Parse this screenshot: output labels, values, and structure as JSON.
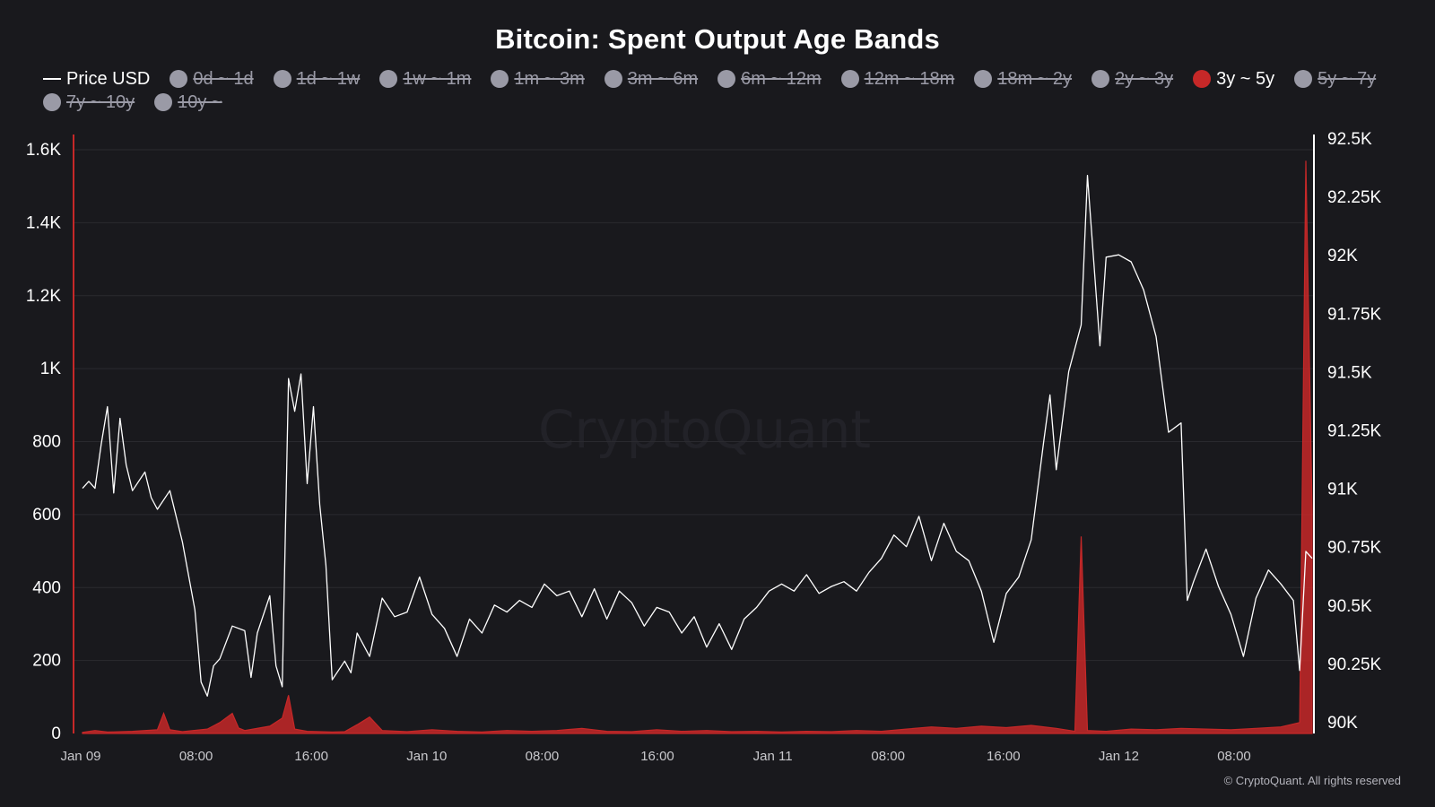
{
  "chart_data": {
    "type": "line",
    "title": "Bitcoin: Spent Output Age Bands",
    "x_ticks": [
      "Jan 09",
      "08:00",
      "16:00",
      "Jan 10",
      "08:00",
      "16:00",
      "Jan 11",
      "08:00",
      "16:00",
      "Jan 12",
      "08:00"
    ],
    "y_left": {
      "ticks": [
        "0",
        "200",
        "400",
        "600",
        "800",
        "1K",
        "1.2K",
        "1.4K",
        "1.6K"
      ],
      "ylim": [
        0,
        1600
      ]
    },
    "y_right": {
      "ticks": [
        "90K",
        "90.25K",
        "90.5K",
        "90.75K",
        "91K",
        "91.25K",
        "91.5K",
        "91.75K",
        "92K",
        "92.25K",
        "92.5K"
      ],
      "ylim": [
        89950,
        92500
      ]
    },
    "legend": [
      {
        "name": "Price USD",
        "kind": "line",
        "active": true
      },
      {
        "name": "0d ~ 1d",
        "kind": "dot",
        "active": false
      },
      {
        "name": "1d ~ 1w",
        "kind": "dot",
        "active": false
      },
      {
        "name": "1w ~ 1m",
        "kind": "dot",
        "active": false
      },
      {
        "name": "1m ~ 3m",
        "kind": "dot",
        "active": false
      },
      {
        "name": "3m ~ 6m",
        "kind": "dot",
        "active": false
      },
      {
        "name": "6m ~ 12m",
        "kind": "dot",
        "active": false
      },
      {
        "name": "12m ~ 18m",
        "kind": "dot",
        "active": false
      },
      {
        "name": "18m ~ 2y",
        "kind": "dot",
        "active": false
      },
      {
        "name": "2y ~ 3y",
        "kind": "dot",
        "active": false
      },
      {
        "name": "3y ~ 5y",
        "kind": "dot",
        "active": true
      },
      {
        "name": "5y ~ 7y",
        "kind": "dot",
        "active": false
      },
      {
        "name": "7y ~ 10y",
        "kind": "dot",
        "active": false
      },
      {
        "name": "10y ~",
        "kind": "dot",
        "active": false
      }
    ],
    "series": [
      {
        "name": "Price USD",
        "axis": "right",
        "color": "#ffffff",
        "points": [
          [
            0.0,
            91000
          ],
          [
            0.5,
            91030
          ],
          [
            1.0,
            91000
          ],
          [
            1.5,
            91190
          ],
          [
            2.0,
            91350
          ],
          [
            2.5,
            90980
          ],
          [
            3.0,
            91300
          ],
          [
            3.5,
            91100
          ],
          [
            4.0,
            90990
          ],
          [
            5.0,
            91070
          ],
          [
            5.5,
            90960
          ],
          [
            6.0,
            90910
          ],
          [
            7.0,
            90990
          ],
          [
            8.0,
            90770
          ],
          [
            9.0,
            90480
          ],
          [
            9.5,
            90170
          ],
          [
            10.0,
            90110
          ],
          [
            10.5,
            90240
          ],
          [
            11.0,
            90270
          ],
          [
            12.0,
            90410
          ],
          [
            13.0,
            90390
          ],
          [
            13.5,
            90190
          ],
          [
            14.0,
            90380
          ],
          [
            15.0,
            90540
          ],
          [
            15.5,
            90240
          ],
          [
            16.0,
            90150
          ],
          [
            16.5,
            91470
          ],
          [
            17.0,
            91330
          ],
          [
            17.5,
            91490
          ],
          [
            18.0,
            91020
          ],
          [
            18.5,
            91350
          ],
          [
            19.0,
            90930
          ],
          [
            19.5,
            90670
          ],
          [
            20.0,
            90180
          ],
          [
            21.0,
            90260
          ],
          [
            21.5,
            90210
          ],
          [
            22.0,
            90380
          ],
          [
            23.0,
            90280
          ],
          [
            24.0,
            90530
          ],
          [
            25.0,
            90450
          ],
          [
            26.0,
            90470
          ],
          [
            27.0,
            90620
          ],
          [
            28.0,
            90460
          ],
          [
            29.0,
            90400
          ],
          [
            30.0,
            90280
          ],
          [
            31.0,
            90440
          ],
          [
            32.0,
            90380
          ],
          [
            33.0,
            90500
          ],
          [
            34.0,
            90470
          ],
          [
            35.0,
            90520
          ],
          [
            36.0,
            90490
          ],
          [
            37.0,
            90590
          ],
          [
            38.0,
            90540
          ],
          [
            39.0,
            90560
          ],
          [
            40.0,
            90450
          ],
          [
            41.0,
            90570
          ],
          [
            42.0,
            90440
          ],
          [
            43.0,
            90560
          ],
          [
            44.0,
            90510
          ],
          [
            45.0,
            90410
          ],
          [
            46.0,
            90490
          ],
          [
            47.0,
            90470
          ],
          [
            48.0,
            90380
          ],
          [
            49.0,
            90450
          ],
          [
            50.0,
            90320
          ],
          [
            51.0,
            90420
          ],
          [
            52.0,
            90310
          ],
          [
            53.0,
            90440
          ],
          [
            54.0,
            90490
          ],
          [
            55.0,
            90560
          ],
          [
            56.0,
            90590
          ],
          [
            57.0,
            90560
          ],
          [
            58.0,
            90630
          ],
          [
            59.0,
            90550
          ],
          [
            60.0,
            90580
          ],
          [
            61.0,
            90600
          ],
          [
            62.0,
            90560
          ],
          [
            63.0,
            90640
          ],
          [
            64.0,
            90700
          ],
          [
            65.0,
            90800
          ],
          [
            66.0,
            90750
          ],
          [
            67.0,
            90880
          ],
          [
            68.0,
            90690
          ],
          [
            69.0,
            90850
          ],
          [
            70.0,
            90730
          ],
          [
            71.0,
            90690
          ],
          [
            72.0,
            90560
          ],
          [
            73.0,
            90340
          ],
          [
            74.0,
            90550
          ],
          [
            75.0,
            90620
          ],
          [
            76.0,
            90780
          ],
          [
            77.0,
            91200
          ],
          [
            77.5,
            91400
          ],
          [
            78.0,
            91080
          ],
          [
            79.0,
            91500
          ],
          [
            80.0,
            91700
          ],
          [
            80.5,
            92340
          ],
          [
            81.5,
            91610
          ],
          [
            82.0,
            91990
          ],
          [
            83.0,
            92000
          ],
          [
            84.0,
            91970
          ],
          [
            85.0,
            91850
          ],
          [
            86.0,
            91650
          ],
          [
            87.0,
            91240
          ],
          [
            88.0,
            91280
          ],
          [
            88.5,
            90520
          ],
          [
            89.0,
            90600
          ],
          [
            90.0,
            90740
          ],
          [
            91.0,
            90580
          ],
          [
            92.0,
            90460
          ],
          [
            93.0,
            90280
          ],
          [
            94.0,
            90530
          ],
          [
            95.0,
            90650
          ],
          [
            96.0,
            90590
          ],
          [
            97.0,
            90520
          ],
          [
            97.5,
            90220
          ],
          [
            98.0,
            90730
          ],
          [
            98.5,
            90700
          ]
        ]
      },
      {
        "name": "3y ~ 5y",
        "axis": "left",
        "color": "#c62828",
        "points": [
          [
            0.0,
            3
          ],
          [
            1.0,
            8
          ],
          [
            2.0,
            4
          ],
          [
            4.0,
            6
          ],
          [
            6.0,
            10
          ],
          [
            6.5,
            55
          ],
          [
            7.0,
            10
          ],
          [
            8.0,
            5
          ],
          [
            10.0,
            12
          ],
          [
            11.0,
            30
          ],
          [
            12.0,
            55
          ],
          [
            12.5,
            15
          ],
          [
            13.0,
            8
          ],
          [
            15.0,
            20
          ],
          [
            16.0,
            42
          ],
          [
            16.5,
            105
          ],
          [
            17.0,
            12
          ],
          [
            18.0,
            6
          ],
          [
            20.0,
            4
          ],
          [
            21.0,
            5
          ],
          [
            22.0,
            24
          ],
          [
            23.0,
            45
          ],
          [
            24.0,
            8
          ],
          [
            26.0,
            5
          ],
          [
            28.0,
            10
          ],
          [
            30.0,
            6
          ],
          [
            32.0,
            4
          ],
          [
            34.0,
            8
          ],
          [
            36.0,
            6
          ],
          [
            38.0,
            8
          ],
          [
            40.0,
            14
          ],
          [
            42.0,
            6
          ],
          [
            44.0,
            5
          ],
          [
            46.0,
            10
          ],
          [
            48.0,
            6
          ],
          [
            50.0,
            8
          ],
          [
            52.0,
            5
          ],
          [
            54.0,
            6
          ],
          [
            56.0,
            4
          ],
          [
            58.0,
            6
          ],
          [
            60.0,
            5
          ],
          [
            62.0,
            8
          ],
          [
            64.0,
            6
          ],
          [
            66.0,
            12
          ],
          [
            68.0,
            18
          ],
          [
            70.0,
            14
          ],
          [
            72.0,
            20
          ],
          [
            74.0,
            16
          ],
          [
            76.0,
            22
          ],
          [
            78.0,
            14
          ],
          [
            79.5,
            6
          ],
          [
            80.0,
            540
          ],
          [
            80.5,
            8
          ],
          [
            82.0,
            6
          ],
          [
            84.0,
            12
          ],
          [
            86.0,
            10
          ],
          [
            88.0,
            14
          ],
          [
            90.0,
            12
          ],
          [
            92.0,
            10
          ],
          [
            94.0,
            14
          ],
          [
            96.0,
            18
          ],
          [
            97.5,
            30
          ],
          [
            98.0,
            1570
          ],
          [
            98.5,
            610
          ]
        ]
      }
    ]
  },
  "watermark": "CryptoQuant",
  "copyright": "© CryptoQuant. All rights reserved",
  "colors": {
    "background": "#19191d",
    "grid": "#2a2a2f",
    "price": "#ffffff",
    "band_active": "#c62828",
    "legend_inactive": "#9a9aa6"
  }
}
